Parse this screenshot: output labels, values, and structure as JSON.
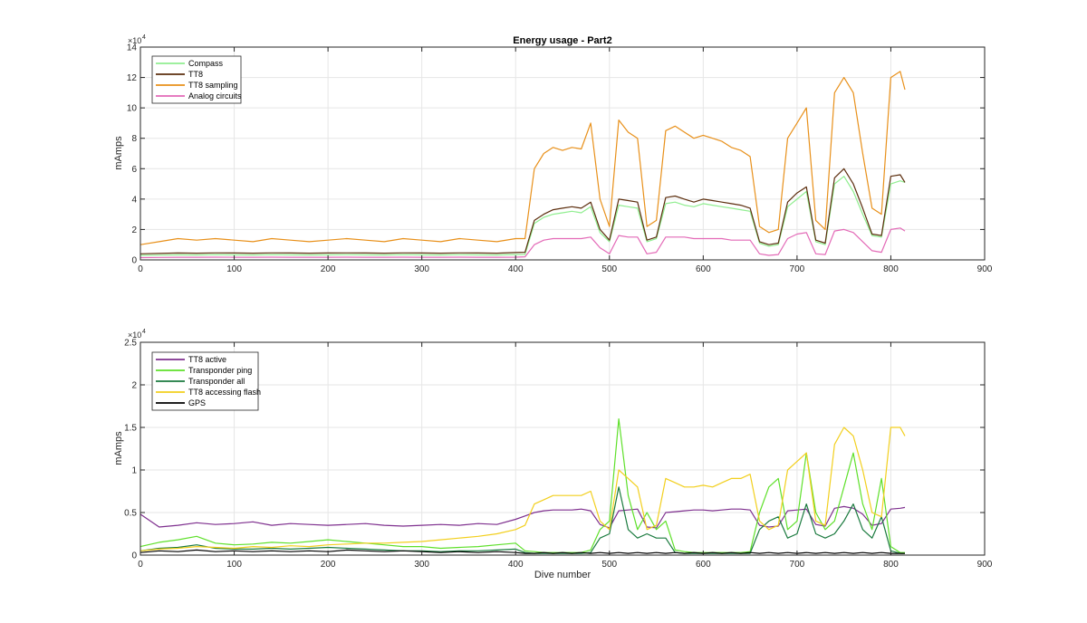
{
  "chart_data": [
    {
      "type": "line",
      "title": "Energy usage - Part2",
      "xlabel": "",
      "ylabel": "mAmps",
      "xlim": [
        0,
        900
      ],
      "ylim": [
        0,
        140000
      ],
      "y_multiplier": "×10",
      "y_exponent": "4",
      "xticks": [
        0,
        100,
        200,
        300,
        400,
        500,
        600,
        700,
        800,
        900
      ],
      "yticks": [
        0,
        2,
        4,
        6,
        8,
        10,
        12,
        14
      ],
      "grid": true,
      "legend_position": "top-left",
      "x": [
        0,
        20,
        40,
        60,
        80,
        100,
        120,
        140,
        160,
        180,
        200,
        220,
        240,
        260,
        280,
        300,
        320,
        340,
        360,
        380,
        400,
        410,
        420,
        430,
        440,
        450,
        460,
        470,
        480,
        490,
        500,
        510,
        520,
        530,
        540,
        550,
        560,
        570,
        580,
        590,
        600,
        610,
        620,
        630,
        640,
        650,
        660,
        670,
        680,
        690,
        700,
        710,
        720,
        730,
        740,
        750,
        760,
        770,
        780,
        790,
        800,
        810,
        815
      ],
      "series": [
        {
          "name": "Compass",
          "color": "#90ee90",
          "values": [
            3000,
            3100,
            3300,
            3200,
            3400,
            3300,
            3200,
            3400,
            3300,
            3200,
            3300,
            3400,
            3300,
            3200,
            3400,
            3300,
            3200,
            3400,
            3300,
            3200,
            3500,
            3600,
            24000,
            28000,
            30000,
            31000,
            32000,
            31000,
            35000,
            18000,
            12000,
            36000,
            35000,
            34000,
            12000,
            14000,
            37000,
            38000,
            36000,
            35000,
            37000,
            36000,
            35000,
            34000,
            33000,
            32000,
            11000,
            9000,
            10000,
            35000,
            40000,
            45000,
            12000,
            10000,
            50000,
            55000,
            45000,
            30000,
            16000,
            15000,
            50000,
            52000,
            51000
          ]
        },
        {
          "name": "TT8",
          "color": "#5c2e0e",
          "values": [
            4000,
            4200,
            4500,
            4400,
            4600,
            4500,
            4400,
            4600,
            4500,
            4400,
            4500,
            4600,
            4500,
            4400,
            4600,
            4500,
            4400,
            4600,
            4500,
            4400,
            4800,
            5000,
            26000,
            30000,
            33000,
            34000,
            35000,
            34000,
            38000,
            20000,
            13000,
            40000,
            39000,
            38000,
            13000,
            15000,
            41000,
            42000,
            40000,
            38000,
            40000,
            39000,
            38000,
            37000,
            36000,
            34000,
            12000,
            10000,
            11000,
            38000,
            44000,
            48000,
            13000,
            11000,
            54000,
            60000,
            50000,
            34000,
            17000,
            16000,
            55000,
            56000,
            51000
          ]
        },
        {
          "name": "TT8 sampling",
          "color": "#e8901a",
          "values": [
            10000,
            12000,
            14000,
            13000,
            14000,
            13000,
            12000,
            14000,
            13000,
            12000,
            13000,
            14000,
            13000,
            12000,
            14000,
            13000,
            12000,
            14000,
            13000,
            12000,
            14000,
            14000,
            60000,
            70000,
            74000,
            72000,
            74000,
            73000,
            90000,
            40000,
            22000,
            92000,
            84000,
            80000,
            22000,
            26000,
            85000,
            88000,
            84000,
            80000,
            82000,
            80000,
            78000,
            74000,
            72000,
            68000,
            22000,
            18000,
            20000,
            80000,
            90000,
            100000,
            26000,
            20000,
            110000,
            120000,
            110000,
            70000,
            34000,
            30000,
            120000,
            124000,
            112000
          ]
        },
        {
          "name": "Analog circuits",
          "color": "#e36ab7",
          "values": [
            1500,
            1600,
            1700,
            1700,
            1800,
            1700,
            1700,
            1800,
            1700,
            1700,
            1700,
            1800,
            1700,
            1700,
            1800,
            1700,
            1700,
            1800,
            1700,
            1700,
            1800,
            2000,
            10000,
            13000,
            14000,
            14000,
            14000,
            14000,
            15000,
            8000,
            4000,
            16000,
            15000,
            15000,
            4000,
            5000,
            15000,
            15000,
            15000,
            14000,
            14000,
            14000,
            14000,
            13000,
            13000,
            13000,
            4000,
            3000,
            3500,
            14000,
            17000,
            18000,
            4000,
            3500,
            19000,
            20000,
            18000,
            12000,
            6000,
            5000,
            20000,
            21000,
            19000
          ]
        }
      ]
    },
    {
      "type": "line",
      "title": "",
      "xlabel": "Dive number",
      "ylabel": "mAmps",
      "xlim": [
        0,
        900
      ],
      "ylim": [
        0,
        25000
      ],
      "y_multiplier": "×10",
      "y_exponent": "4",
      "xticks": [
        0,
        100,
        200,
        300,
        400,
        500,
        600,
        700,
        800,
        900
      ],
      "yticks": [
        0,
        0.5,
        1,
        1.5,
        2,
        2.5
      ],
      "grid": true,
      "legend_position": "top-left",
      "x": [
        0,
        20,
        40,
        60,
        80,
        100,
        120,
        140,
        160,
        180,
        200,
        220,
        240,
        260,
        280,
        300,
        320,
        340,
        360,
        380,
        400,
        410,
        420,
        430,
        440,
        450,
        460,
        470,
        480,
        490,
        500,
        510,
        520,
        530,
        540,
        550,
        560,
        570,
        580,
        590,
        600,
        610,
        620,
        630,
        640,
        650,
        660,
        670,
        680,
        690,
        700,
        710,
        720,
        730,
        740,
        750,
        760,
        770,
        780,
        790,
        800,
        810,
        815
      ],
      "series": [
        {
          "name": "TT8 active",
          "color": "#7e2f8e",
          "values": [
            4800,
            3300,
            3500,
            3800,
            3600,
            3700,
            3900,
            3500,
            3700,
            3600,
            3500,
            3600,
            3700,
            3500,
            3400,
            3500,
            3600,
            3500,
            3700,
            3600,
            4200,
            4600,
            5000,
            5200,
            5300,
            5300,
            5300,
            5400,
            5200,
            3600,
            3200,
            5200,
            5300,
            5400,
            3300,
            3200,
            5000,
            5100,
            5200,
            5300,
            5300,
            5200,
            5300,
            5400,
            5400,
            5300,
            3500,
            3300,
            3400,
            5200,
            5300,
            5400,
            3600,
            3400,
            5500,
            5700,
            5500,
            4800,
            3500,
            3700,
            5400,
            5500,
            5600
          ]
        },
        {
          "name": "Transponder ping",
          "color": "#5ee02a",
          "values": [
            1000,
            1500,
            1800,
            2200,
            1400,
            1200,
            1300,
            1500,
            1400,
            1600,
            1800,
            1600,
            1400,
            1200,
            1000,
            1000,
            800,
            900,
            1000,
            1200,
            1400,
            500,
            400,
            300,
            300,
            300,
            300,
            300,
            600,
            3000,
            4000,
            16000,
            7000,
            3000,
            5000,
            3000,
            4000,
            600,
            400,
            300,
            300,
            300,
            300,
            300,
            300,
            400,
            5000,
            8000,
            9000,
            3000,
            4000,
            12000,
            5000,
            3000,
            4000,
            8000,
            12000,
            6000,
            3000,
            9000,
            1000,
            300,
            300
          ]
        },
        {
          "name": "Transponder all",
          "color": "#1a7a3e",
          "values": [
            500,
            800,
            900,
            1200,
            800,
            700,
            700,
            800,
            700,
            800,
            900,
            800,
            700,
            600,
            500,
            500,
            400,
            500,
            500,
            600,
            700,
            300,
            200,
            200,
            200,
            200,
            200,
            200,
            300,
            2000,
            2500,
            8000,
            3000,
            2000,
            2500,
            2000,
            2000,
            300,
            200,
            200,
            200,
            200,
            200,
            200,
            200,
            200,
            3000,
            4000,
            4500,
            2000,
            2500,
            6000,
            2500,
            2000,
            2500,
            4000,
            6000,
            3000,
            2000,
            4500,
            500,
            200,
            200
          ]
        },
        {
          "name": "TT8 accessing flash",
          "color": "#f2cf1d",
          "values": [
            500,
            700,
            800,
            1000,
            900,
            800,
            1000,
            900,
            1100,
            1000,
            1200,
            1300,
            1400,
            1400,
            1500,
            1600,
            1800,
            2000,
            2200,
            2500,
            3000,
            3500,
            6000,
            6500,
            7000,
            7000,
            7000,
            7000,
            7500,
            4000,
            3000,
            10000,
            9000,
            8000,
            3000,
            3500,
            9000,
            8500,
            8000,
            8000,
            8200,
            8000,
            8500,
            9000,
            9000,
            9500,
            4000,
            3000,
            3500,
            10000,
            11000,
            12000,
            4000,
            3500,
            13000,
            15000,
            14000,
            10000,
            5000,
            4500,
            15000,
            15000,
            14000
          ]
        },
        {
          "name": "GPS",
          "color": "#000000",
          "values": [
            300,
            500,
            400,
            600,
            400,
            500,
            400,
            500,
            400,
            500,
            400,
            600,
            500,
            400,
            500,
            400,
            300,
            400,
            300,
            400,
            300,
            200,
            200,
            300,
            200,
            300,
            200,
            300,
            200,
            300,
            200,
            300,
            200,
            300,
            200,
            300,
            200,
            300,
            200,
            300,
            200,
            300,
            200,
            300,
            200,
            300,
            200,
            300,
            200,
            300,
            200,
            300,
            200,
            300,
            200,
            300,
            200,
            300,
            200,
            300,
            200,
            200,
            200
          ]
        }
      ]
    }
  ]
}
